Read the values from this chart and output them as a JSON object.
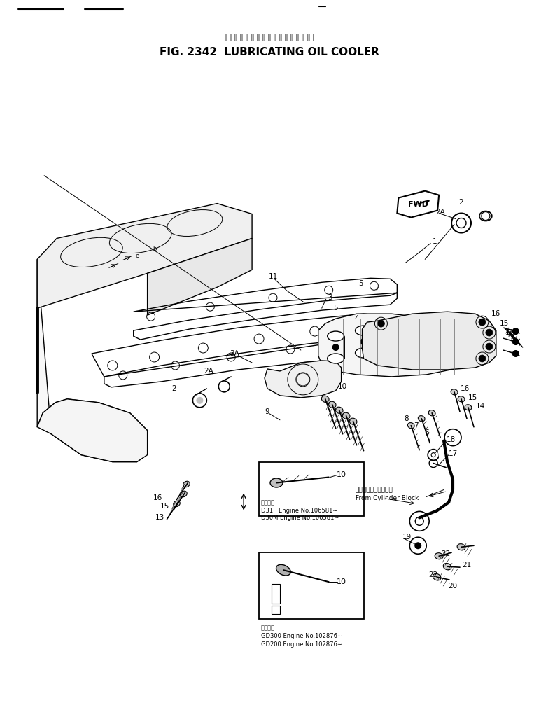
{
  "title_jp": "ルーブリケーティングオイルクーラ",
  "title_en": "FIG. 2342  LUBRICATING OIL COOLER",
  "bg_color": "#ffffff",
  "fig_width": 7.7,
  "fig_height": 10.14,
  "dpi": 100,
  "annotation_d31": "D31   Engine No.106581∼",
  "annotation_d30m": "D30M Engine No.106581∼",
  "annotation_gd300": "GD300 Engine No.102876∼",
  "annotation_gd200": "GD200 Engine No.102876∼",
  "annotation_tekiyo": "適用号機",
  "annotation_cylinder_jp": "シリンダブロックから",
  "annotation_cylinder_en": "From Cylinder Block"
}
